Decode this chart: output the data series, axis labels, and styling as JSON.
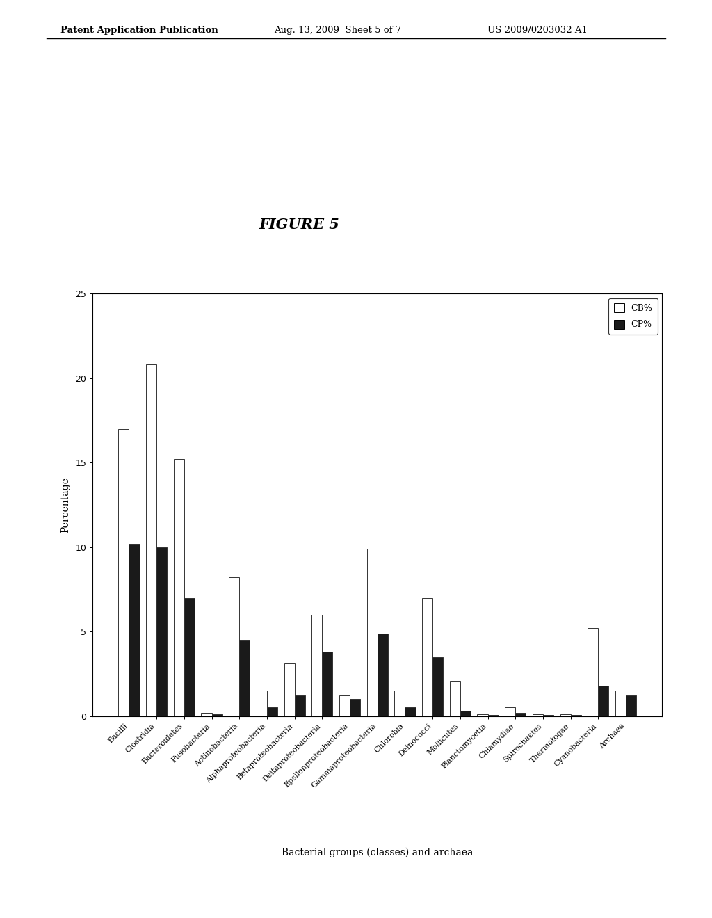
{
  "categories": [
    "Bacilli",
    "Clostridia",
    "Bacteroidetes",
    "Fusobacteria",
    "Actinobacteria",
    "Alphaproteobacteria",
    "Betaproteobacteria",
    "Deltaproteobacteria",
    "Epsilonproteobacteria",
    "Gammaproteobacteria",
    "Chlorobia",
    "Deinococci",
    "Mollicutes",
    "Planctomycetia",
    "Chlamydiae",
    "Spirochaetes",
    "Thermotogae",
    "Cyanobacteria",
    "Archaea"
  ],
  "CB_values": [
    17.0,
    20.8,
    15.2,
    0.2,
    8.2,
    1.5,
    3.1,
    6.0,
    1.2,
    9.9,
    1.5,
    7.0,
    2.1,
    0.1,
    0.5,
    0.1,
    0.1,
    5.2,
    1.5
  ],
  "CP_values": [
    10.2,
    10.0,
    7.0,
    0.1,
    4.5,
    0.5,
    1.2,
    3.8,
    1.0,
    4.9,
    0.5,
    3.5,
    0.3,
    0.05,
    0.2,
    0.05,
    0.05,
    1.8,
    1.2
  ],
  "ylabel": "Percentage",
  "xlabel": "Bacterial groups (classes) and archaea",
  "title": "FIGURE 5",
  "ylim": [
    0,
    25
  ],
  "yticks": [
    0,
    5,
    10,
    15,
    20,
    25
  ],
  "cb_color": "#ffffff",
  "cp_color": "#1a1a1a",
  "bar_edge_color": "#333333",
  "background_color": "#ffffff",
  "figure_bg": "#ffffff",
  "header_left": "Patent Application Publication",
  "header_mid": "Aug. 13, 2009  Sheet 5 of 7",
  "header_right": "US 2009/0203032 A1"
}
